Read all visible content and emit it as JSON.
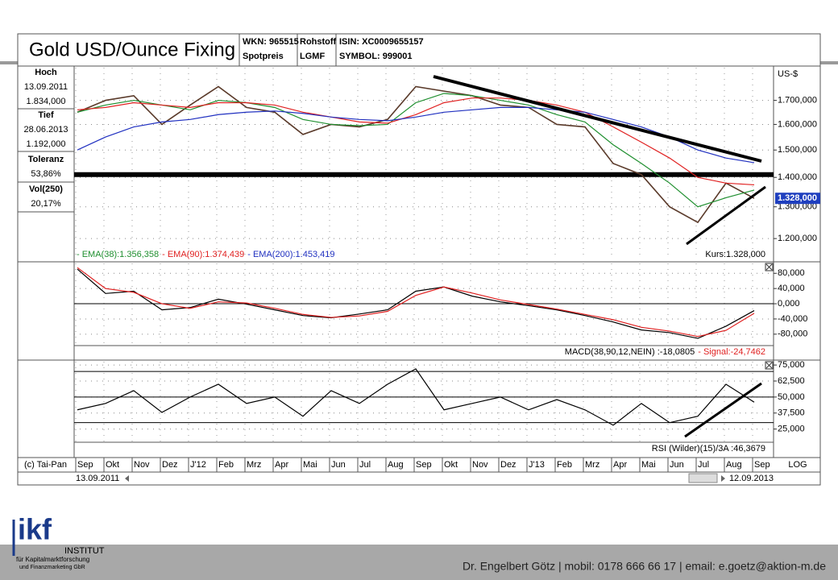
{
  "header": {
    "title": "Gold USD/Ounce Fixing",
    "wkn": "WKN: 965515",
    "wkn_type": "Spotpreis",
    "class": "Rohstoff",
    "exchange": "LGMF",
    "isin": "ISIN: XC0009655157",
    "symbol": "SYMBOL: 999001"
  },
  "sidebar": {
    "high_label": "Hoch",
    "high_date": "13.09.2011",
    "high_value": "1.834,000",
    "low_label": "Tief",
    "low_date": "28.06.2013",
    "low_value": "1.192,000",
    "tolerance_label": "Toleranz",
    "tolerance_value": "53,86%",
    "vol_label": "Vol(250)",
    "vol_value": "20,17%"
  },
  "axis_bar": {
    "copyright": "(c) Tai-Pan",
    "scale_mode": "LOG",
    "range_start": "13.09.2011",
    "range_end": "12.09.2013"
  },
  "chart_data": [
    {
      "type": "line",
      "y_axis_label": "US-$",
      "log_scale": true,
      "grid": true,
      "ylim": [
        1134,
        1846
      ],
      "yticks": [
        {
          "value": 1200,
          "label": "1.200,000"
        },
        {
          "value": 1300,
          "label": "1.300,000"
        },
        {
          "value": 1400,
          "label": "1.400,000"
        },
        {
          "value": 1500,
          "label": "1.500,000"
        },
        {
          "value": 1600,
          "label": "1.600,000"
        },
        {
          "value": 1700,
          "label": "1.700,000"
        }
      ],
      "reference_lines": [
        1410
      ],
      "annotation": "Kurs:1.328,000",
      "price_tag": {
        "value": 1328,
        "label": "1.328,000"
      },
      "series": [
        {
          "color": "#5a3a2a",
          "values": [
            1650,
            1700,
            1720,
            1600,
            1680,
            1760,
            1670,
            1650,
            1560,
            1600,
            1590,
            1620,
            1760,
            1740,
            1720,
            1680,
            1670,
            1600,
            1590,
            1450,
            1410,
            1300,
            1250,
            1380,
            1328
          ]
        },
        {
          "name": "- EMA(38):1.356,358",
          "color": "#1f8f2f",
          "values": [
            1650,
            1680,
            1700,
            1680,
            1660,
            1700,
            1690,
            1670,
            1620,
            1600,
            1595,
            1600,
            1690,
            1730,
            1720,
            1700,
            1680,
            1640,
            1610,
            1520,
            1450,
            1380,
            1300,
            1330,
            1356
          ]
        },
        {
          "name": "- EMA(90):1.374,439",
          "color": "#e02020",
          "values": [
            1660,
            1670,
            1690,
            1680,
            1670,
            1690,
            1690,
            1680,
            1650,
            1630,
            1610,
            1605,
            1640,
            1690,
            1710,
            1710,
            1700,
            1680,
            1650,
            1590,
            1530,
            1470,
            1400,
            1380,
            1374
          ]
        },
        {
          "name": "- EMA(200):1.453,419",
          "color": "#2030c0",
          "values": [
            1500,
            1550,
            1590,
            1610,
            1620,
            1640,
            1650,
            1655,
            1645,
            1630,
            1620,
            1615,
            1630,
            1650,
            1660,
            1670,
            1670,
            1660,
            1650,
            1620,
            1590,
            1550,
            1500,
            1470,
            1453
          ]
        }
      ]
    },
    {
      "type": "line",
      "grid": true,
      "ylim": [
        -146,
        106
      ],
      "yticks": [
        {
          "value": 80,
          "label": "80,000"
        },
        {
          "value": 40,
          "label": "40,000"
        },
        {
          "value": 0,
          "label": "0,000"
        },
        {
          "value": -40,
          "label": "-40,000"
        },
        {
          "value": -80,
          "label": "-80,000"
        }
      ],
      "reference_lines": [
        0
      ],
      "series": [
        {
          "name": "MACD(38,90,12,NEIN) :-18,0805",
          "color": "#000000",
          "values": [
            91,
            27,
            33,
            -16,
            -10,
            12,
            -1,
            -16,
            -31,
            -37,
            -27,
            -16,
            33,
            44,
            20,
            5,
            -5,
            -16,
            -31,
            -48,
            -69,
            -76,
            -91,
            -59,
            -18
          ]
        },
        {
          "name": "- Signal:-24,7462",
          "color": "#e02020",
          "values": [
            95,
            40,
            30,
            0,
            -12,
            5,
            2,
            -12,
            -28,
            -36,
            -32,
            -20,
            22,
            44,
            28,
            10,
            -2,
            -14,
            -28,
            -42,
            -62,
            -72,
            -86,
            -70,
            -25
          ]
        }
      ]
    },
    {
      "type": "line",
      "grid": true,
      "ylim": [
        4,
        77.6
      ],
      "yticks": [
        {
          "value": 75,
          "label": "75,000"
        },
        {
          "value": 62.5,
          "label": "62,500"
        },
        {
          "value": 50,
          "label": "50,000"
        },
        {
          "value": 37.5,
          "label": "37,500"
        },
        {
          "value": 25,
          "label": "25,000"
        }
      ],
      "reference_lines": [
        70,
        50,
        30
      ],
      "categories": [
        "Sep",
        "Okt",
        "Nov",
        "Dez",
        "J'12",
        "Feb",
        "Mrz",
        "Apr",
        "Mai",
        "Jun",
        "Jul",
        "Aug",
        "Sep",
        "Okt",
        "Nov",
        "Dez",
        "J'13",
        "Feb",
        "Mrz",
        "Apr",
        "Mai",
        "Jun",
        "Jul",
        "Aug",
        "Sep"
      ],
      "series": [
        {
          "name": "RSI (Wilder)(15)/3A :46,3679",
          "color": "#000000",
          "values": [
            40,
            45,
            55,
            38,
            50,
            60,
            45,
            50,
            35,
            55,
            45,
            60,
            72,
            40,
            45,
            50,
            40,
            48,
            40,
            28,
            45,
            30,
            35,
            60,
            46
          ]
        }
      ]
    }
  ],
  "footer": {
    "logo": "ikf",
    "institute": "INSTITUT",
    "line1": "für Kapitalmarktforschung",
    "line2": "und Finanzmarketing GbR",
    "contact": "Dr. Engelbert Götz  |  mobil: 0178 666 66 17  |  email: e.goetz@aktion-m.de"
  }
}
